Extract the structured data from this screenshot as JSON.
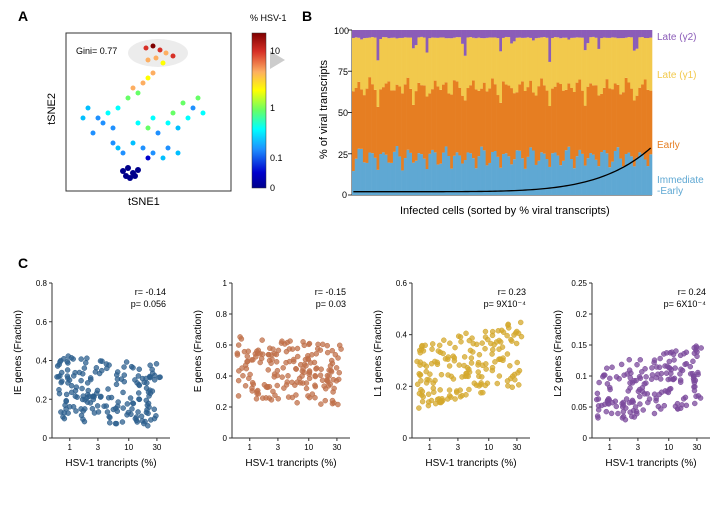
{
  "panelA": {
    "label": "A",
    "gini_text": "Gini= 0.77",
    "xaxis": "tSNE1",
    "yaxis": "tSNE2",
    "colorbar_title": "% HSV-1",
    "colorbar_ticks": [
      "10",
      "1",
      "0.1",
      "0"
    ],
    "colorbar_colors": [
      "#7f0000",
      "#d73027",
      "#fdae61",
      "#ffff00",
      "#66ff66",
      "#00ffff",
      "#1e90ff",
      "#0000cd",
      "#00008b"
    ]
  },
  "panelB": {
    "label": "B",
    "yaxis": "% of viral transcripts",
    "xaxis": "Infected cells (sorted by % viral transcripts)",
    "yticks": [
      "0",
      "25",
      "50",
      "75",
      "100"
    ],
    "series": [
      {
        "label": "Late (γ2)",
        "color": "#8b5cb8"
      },
      {
        "label": "Late (γ1)",
        "color": "#f2c94c"
      },
      {
        "label": "Early",
        "color": "#e67e22"
      },
      {
        "label": "Immediate\n-Early",
        "color": "#5fa8d3"
      }
    ]
  },
  "panelC": {
    "label": "C",
    "plots": [
      {
        "ylabel": "IE genes (Fraction)",
        "xlabel": "HSV-1 trancripts (%)",
        "r": "r= -0.14",
        "p": "p= 0.056",
        "color": "#2c5f8d",
        "yticks": [
          "0",
          "0.2",
          "0.4",
          "0.6",
          "0.8"
        ],
        "xticks": [
          "1",
          "3",
          "10",
          "30"
        ]
      },
      {
        "ylabel": "E genes (Fraction)",
        "xlabel": "HSV-1 trancripts (%)",
        "r": "r= -0.15",
        "p": "p= 0.03",
        "color": "#c0704a",
        "yticks": [
          "0",
          "0.2",
          "0.4",
          "0.6",
          "0.8",
          "1"
        ],
        "xticks": [
          "1",
          "3",
          "10",
          "30"
        ]
      },
      {
        "ylabel": "L1 genes (Fraction)",
        "xlabel": "HSV-1 trancripts (%)",
        "r": "r= 0.23",
        "p": "p= 9X10⁻⁴",
        "color": "#d4a82c",
        "yticks": [
          "0",
          "0.2",
          "0.4",
          "0.6"
        ],
        "xticks": [
          "1",
          "3",
          "10",
          "30"
        ]
      },
      {
        "ylabel": "L2 genes (Fraction)",
        "xlabel": "HSV-1 trancripts (%)",
        "r": "r= 0.24",
        "p": "p= 6X10⁻⁴",
        "color": "#7b4a9c",
        "yticks": [
          "0",
          "0.05",
          "0.1",
          "0.15",
          "0.2",
          "0.25"
        ],
        "xticks": [
          "1",
          "3",
          "10",
          "30"
        ]
      }
    ]
  }
}
